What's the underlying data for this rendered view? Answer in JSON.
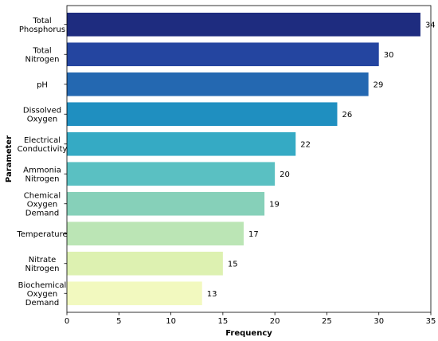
{
  "chart_data": {
    "type": "bar",
    "orientation": "horizontal",
    "title": "",
    "xlabel": "Frequency",
    "ylabel": "Parameter",
    "xlim": [
      0,
      35
    ],
    "xticks": [
      0,
      5,
      10,
      15,
      20,
      25,
      30,
      35
    ],
    "grid": false,
    "legend": "none",
    "categories": [
      "Total\nPhosphorus",
      "Total\nNitrogen",
      "pH",
      "Dissolved\nOxygen",
      "Electrical\nConductivity",
      "Ammonia\nNitrogen",
      "Chemical\nOxygen\nDemand",
      "Temperature",
      "Nitrate\nNitrogen",
      "Biochemical\nOxygen\nDemand"
    ],
    "values": [
      34,
      30,
      29,
      26,
      22,
      20,
      19,
      17,
      15,
      13
    ],
    "colors": [
      "#1e2c7f",
      "#2445a0",
      "#2468b1",
      "#1f8fc0",
      "#35aac4",
      "#5ac0c2",
      "#86d0b9",
      "#bbe5b5",
      "#ddf1b1",
      "#f2f9bf"
    ]
  }
}
